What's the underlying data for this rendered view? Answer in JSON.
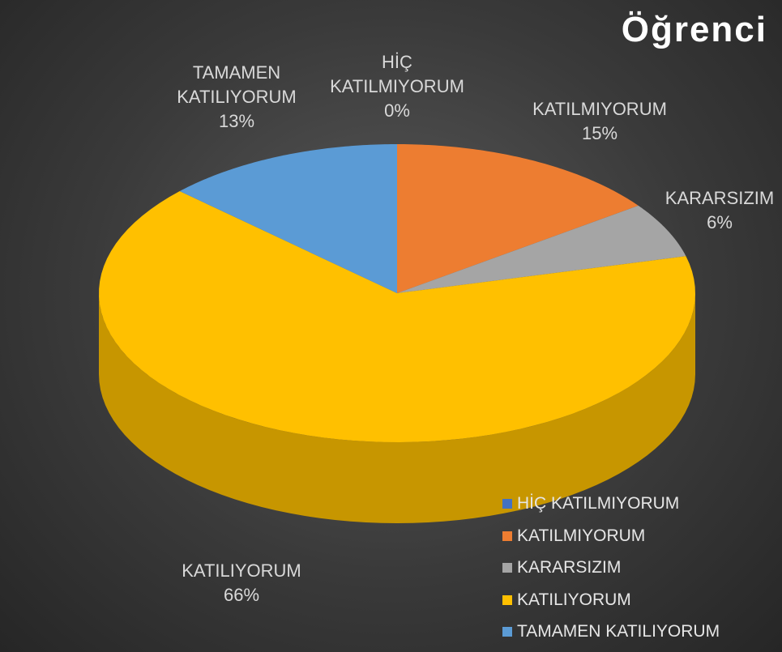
{
  "chart_data": {
    "type": "pie",
    "title": "Öğrenci",
    "categories": [
      "HİÇ KATILMIYORUM",
      "KATILMIYORUM",
      "KARARSIZIM",
      "KATILIYORUM",
      "TAMAMEN KATILIYORUM"
    ],
    "values": [
      0,
      15,
      6,
      66,
      13
    ],
    "value_labels": [
      "0%",
      "15%",
      "6%",
      "66%",
      "13%"
    ],
    "colors": [
      "#4472c4",
      "#ed7d31",
      "#a5a5a5",
      "#ffc000",
      "#5b9bd5"
    ],
    "legend": "bottom-right"
  }
}
